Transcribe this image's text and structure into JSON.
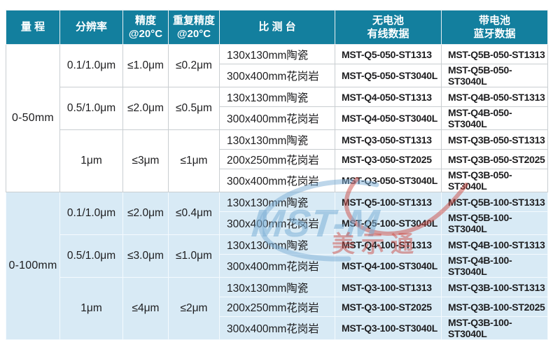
{
  "header": {
    "range": "量 程",
    "resolution": "分辨率",
    "accuracy": "精度\n@20°C",
    "repeatability": "重复精度\n@20°C",
    "platform": "比 测 台",
    "wired": "无电池\n有线数据",
    "bluetooth": "带电池\n蓝牙数据"
  },
  "colors": {
    "header_bg": "#137f9e",
    "alt_row_bg": "#d8eaf5",
    "text": "#1d1d1f",
    "watermark_blue": "#7caed6",
    "watermark_red": "#cb4c46"
  },
  "watermark": {
    "logo": "MST-M",
    "cn": "美示通"
  },
  "sections": [
    {
      "range": "0-50mm",
      "groups": [
        {
          "resolution": "0.1/1.0μm",
          "accuracy": "≤1.0μm",
          "repeatability": "≤0.2μm",
          "rows": [
            {
              "platform": "130x130mm陶瓷",
              "wired": "MST-Q5-050-ST1313",
              "bluetooth": "MST-Q5B-050-ST1313"
            },
            {
              "platform": "300x400mm花岗岩",
              "wired": "MST-Q5-050-ST3040L",
              "bluetooth": "MST-Q5B-050-ST3040L"
            }
          ]
        },
        {
          "resolution": "0.5/1.0μm",
          "accuracy": "≤2.0μm",
          "repeatability": "≤0.5μm",
          "rows": [
            {
              "platform": "130x130mm陶瓷",
              "wired": "MST-Q4-050-ST1313",
              "bluetooth": "MST-Q4B-050-ST1313"
            },
            {
              "platform": "300x400mm花岗岩",
              "wired": "MST-Q4-050-ST3040L",
              "bluetooth": "MST-Q4B-050-ST3040L"
            }
          ]
        },
        {
          "resolution": "1μm",
          "accuracy": "≤3μm",
          "repeatability": "≤1μm",
          "rows": [
            {
              "platform": "130x130mm陶瓷",
              "wired": "MST-Q3-050-ST1313",
              "bluetooth": "MST-Q3B-050-ST1313"
            },
            {
              "platform": "200x250mm花岗岩",
              "wired": "MST-Q3-050-ST2025",
              "bluetooth": "MST-Q3B-050-ST2025"
            },
            {
              "platform": "300x400mm花岗岩",
              "wired": "MST-Q3-050-ST3040L",
              "bluetooth": "MST-Q3B-050-ST3040L"
            }
          ]
        }
      ]
    },
    {
      "range": "0-100mm",
      "groups": [
        {
          "resolution": "0.1/1.0μm",
          "accuracy": "≤2.0μm",
          "repeatability": "≤0.4μm",
          "rows": [
            {
              "platform": "130x130mm陶瓷",
              "wired": "MST-Q5-100-ST1313",
              "bluetooth": "MST-Q5B-100-ST1313"
            },
            {
              "platform": "300x400mm花岗岩",
              "wired": "MST-Q5-100-ST3040L",
              "bluetooth": "MST-Q5B-100-ST3040L"
            }
          ]
        },
        {
          "resolution": "0.5/1.0μm",
          "accuracy": "≤3.0μm",
          "repeatability": "≤1.0μm",
          "rows": [
            {
              "platform": "130x130mm陶瓷",
              "wired": "MST-Q4-100-ST1313",
              "bluetooth": "MST-Q4B-100-ST1313"
            },
            {
              "platform": "300x400mm花岗岩",
              "wired": "MST-Q4-100-ST3040L",
              "bluetooth": "MST-Q4B-100-ST3040L"
            }
          ]
        },
        {
          "resolution": "1μm",
          "accuracy": "≤4μm",
          "repeatability": "≤2μm",
          "rows": [
            {
              "platform": "130x130mm陶瓷",
              "wired": "MST-Q3-100-ST1313",
              "bluetooth": "MST-Q3B-100-ST1313"
            },
            {
              "platform": "200x250mm花岗岩",
              "wired": "MST-Q3-100-ST2025",
              "bluetooth": "MST-Q3B-100-ST2025"
            },
            {
              "platform": "300x400mm花岗岩",
              "wired": "MST-Q3-100-ST3040L",
              "bluetooth": "MST-Q3B-100-ST3040L"
            }
          ]
        }
      ]
    }
  ]
}
